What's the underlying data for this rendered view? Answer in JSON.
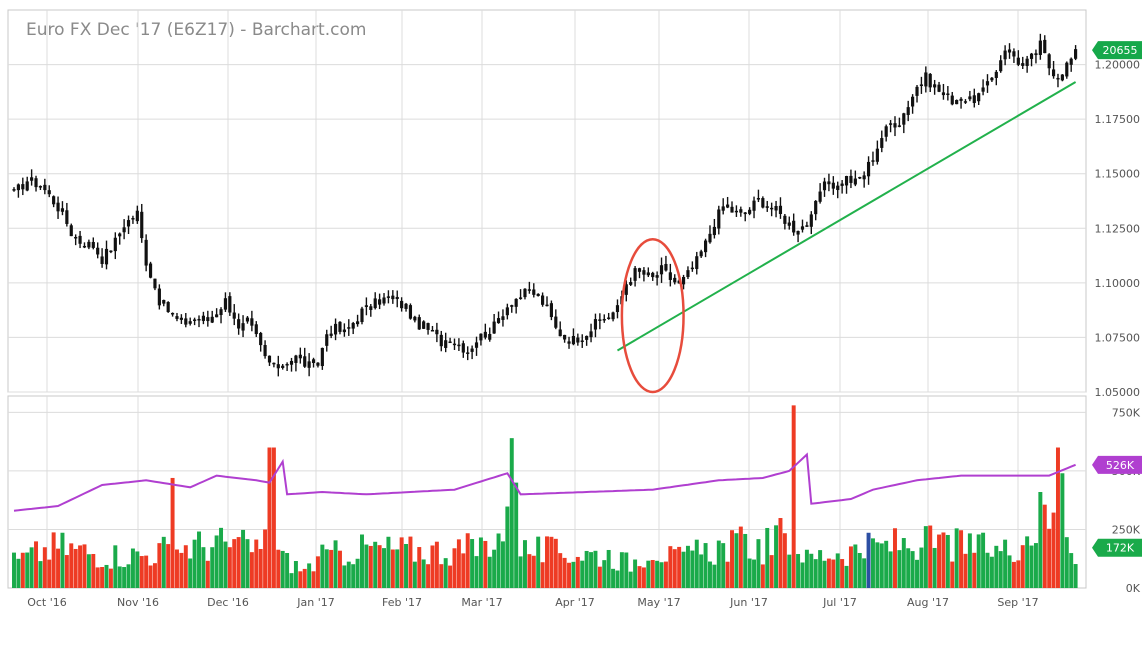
{
  "chart_data": [
    {
      "type": "ohlc",
      "title": "Euro FX Dec '17 (E6Z17) - Barchart.com",
      "y_ticks": [
        "1.05000",
        "1.07500",
        "1.10000",
        "1.12500",
        "1.15000",
        "1.17500",
        "1.20000"
      ],
      "y_tick_values": [
        1.05,
        1.075,
        1.1,
        1.125,
        1.15,
        1.175,
        1.2
      ],
      "ylim": [
        1.05,
        1.225
      ],
      "last_price_label": "20655",
      "last_price": 1.2066,
      "x_tick_labels": [
        "Oct '16",
        "Nov '16",
        "Dec '16",
        "Jan '17",
        "Feb '17",
        "Mar '17",
        "Apr '17",
        "May '17",
        "Jun '17",
        "Jul '17",
        "Aug '17",
        "Sep '17"
      ],
      "price_anchors": [
        [
          0,
          1.141
        ],
        [
          3,
          1.147
        ],
        [
          6,
          1.145
        ],
        [
          8,
          1.14
        ],
        [
          11,
          1.132
        ],
        [
          13,
          1.123
        ],
        [
          15,
          1.119
        ],
        [
          18,
          1.117
        ],
        [
          20,
          1.111
        ],
        [
          23,
          1.119
        ],
        [
          25,
          1.127
        ],
        [
          27,
          1.13
        ],
        [
          28,
          1.132
        ],
        [
          29,
          1.12
        ],
        [
          30,
          1.11
        ],
        [
          33,
          1.092
        ],
        [
          36,
          1.085
        ],
        [
          38,
          1.081
        ],
        [
          40,
          1.083
        ],
        [
          42,
          1.084
        ],
        [
          44,
          1.083
        ],
        [
          46,
          1.087
        ],
        [
          48,
          1.092
        ],
        [
          50,
          1.085
        ],
        [
          51,
          1.078
        ],
        [
          53,
          1.082
        ],
        [
          55,
          1.075
        ],
        [
          57,
          1.066
        ],
        [
          59,
          1.061
        ],
        [
          61,
          1.063
        ],
        [
          63,
          1.065
        ],
        [
          64,
          1.066
        ],
        [
          66,
          1.063
        ],
        [
          68,
          1.061
        ],
        [
          69,
          1.063
        ],
        [
          71,
          1.077
        ],
        [
          73,
          1.079
        ],
        [
          75,
          1.077
        ],
        [
          77,
          1.082
        ],
        [
          79,
          1.087
        ],
        [
          81,
          1.089
        ],
        [
          83,
          1.092
        ],
        [
          85,
          1.093
        ],
        [
          87,
          1.091
        ],
        [
          89,
          1.089
        ],
        [
          91,
          1.082
        ],
        [
          93,
          1.08
        ],
        [
          95,
          1.077
        ],
        [
          97,
          1.073
        ],
        [
          99,
          1.075
        ],
        [
          101,
          1.072
        ],
        [
          103,
          1.069
        ],
        [
          105,
          1.074
        ],
        [
          107,
          1.077
        ],
        [
          109,
          1.08
        ],
        [
          111,
          1.087
        ],
        [
          113,
          1.092
        ],
        [
          115,
          1.094
        ],
        [
          117,
          1.096
        ],
        [
          119,
          1.094
        ],
        [
          121,
          1.088
        ],
        [
          123,
          1.079
        ],
        [
          125,
          1.075
        ],
        [
          127,
          1.074
        ],
        [
          129,
          1.076
        ],
        [
          131,
          1.079
        ],
        [
          133,
          1.083
        ],
        [
          135,
          1.085
        ],
        [
          137,
          1.088
        ],
        [
          139,
          1.1
        ],
        [
          141,
          1.105
        ],
        [
          143,
          1.104
        ],
        [
          145,
          1.102
        ],
        [
          147,
          1.106
        ],
        [
          149,
          1.102
        ],
        [
          151,
          1.099
        ],
        [
          153,
          1.104
        ],
        [
          155,
          1.11
        ],
        [
          157,
          1.118
        ],
        [
          159,
          1.128
        ],
        [
          161,
          1.135
        ],
        [
          163,
          1.133
        ],
        [
          165,
          1.131
        ],
        [
          167,
          1.134
        ],
        [
          169,
          1.138
        ],
        [
          171,
          1.136
        ],
        [
          173,
          1.133
        ],
        [
          175,
          1.129
        ],
        [
          177,
          1.125
        ],
        [
          179,
          1.126
        ],
        [
          181,
          1.129
        ],
        [
          183,
          1.142
        ],
        [
          185,
          1.146
        ],
        [
          187,
          1.144
        ],
        [
          189,
          1.148
        ],
        [
          191,
          1.146
        ],
        [
          193,
          1.15
        ],
        [
          195,
          1.158
        ],
        [
          197,
          1.167
        ],
        [
          199,
          1.173
        ],
        [
          201,
          1.174
        ],
        [
          203,
          1.182
        ],
        [
          205,
          1.19
        ],
        [
          207,
          1.194
        ],
        [
          209,
          1.19
        ],
        [
          211,
          1.186
        ],
        [
          213,
          1.184
        ],
        [
          215,
          1.185
        ],
        [
          217,
          1.183
        ],
        [
          219,
          1.186
        ],
        [
          221,
          1.19
        ],
        [
          223,
          1.198
        ],
        [
          225,
          1.208
        ],
        [
          227,
          1.204
        ],
        [
          229,
          1.199
        ],
        [
          231,
          1.203
        ],
        [
          233,
          1.209
        ],
        [
          235,
          1.199
        ],
        [
          237,
          1.195
        ],
        [
          239,
          1.2
        ],
        [
          241,
          1.205
        ]
      ],
      "markers": [
        {
          "type": "trendline",
          "from": [
            137,
            1.069
          ],
          "to": [
            241,
            1.192
          ],
          "color": "#22b14c"
        },
        {
          "type": "ellipse",
          "center": [
            145,
            1.085
          ],
          "radii": [
            7,
            0.035
          ],
          "color": "#e74c3c"
        }
      ]
    },
    {
      "type": "bar",
      "y_ticks": [
        "0K",
        "250K",
        "500K",
        "750K"
      ],
      "y_tick_values": [
        0,
        250000,
        500000,
        750000
      ],
      "ylim": [
        0,
        820000
      ],
      "up_color": "#1aaa4a",
      "down_color": "#ee3b24",
      "highlight_color": "#2c4fa3",
      "highlight_index": 194,
      "volume_anchors": [
        [
          0,
          120
        ],
        [
          10,
          190
        ],
        [
          20,
          150
        ],
        [
          30,
          150
        ],
        [
          35,
          180
        ],
        [
          40,
          190
        ],
        [
          47,
          200
        ],
        [
          55,
          180
        ],
        [
          60,
          160
        ],
        [
          62,
          120
        ],
        [
          66,
          80
        ],
        [
          70,
          140
        ],
        [
          80,
          180
        ],
        [
          90,
          170
        ],
        [
          100,
          170
        ],
        [
          105,
          180
        ],
        [
          110,
          240
        ],
        [
          113,
          300
        ],
        [
          116,
          170
        ],
        [
          125,
          160
        ],
        [
          135,
          150
        ],
        [
          140,
          110
        ],
        [
          145,
          190
        ],
        [
          150,
          130
        ],
        [
          160,
          180
        ],
        [
          165,
          200
        ],
        [
          170,
          180
        ],
        [
          175,
          240
        ],
        [
          178,
          200
        ],
        [
          180,
          130
        ],
        [
          185,
          160
        ],
        [
          195,
          180
        ],
        [
          200,
          200
        ],
        [
          210,
          200
        ],
        [
          220,
          180
        ],
        [
          225,
          170
        ],
        [
          230,
          240
        ],
        [
          235,
          300
        ],
        [
          239,
          280
        ],
        [
          241,
          170
        ]
      ],
      "volume_spikes": [
        [
          36,
          470
        ],
        [
          57,
          250
        ],
        [
          58,
          600
        ],
        [
          59,
          600
        ],
        [
          113,
          640
        ],
        [
          114,
          450
        ],
        [
          177,
          780
        ],
        [
          233,
          410
        ],
        [
          237,
          600
        ],
        [
          238,
          490
        ]
      ],
      "moving_average": {
        "color": "#b03fd0",
        "anchors": [
          [
            0,
            330
          ],
          [
            10,
            350
          ],
          [
            20,
            440
          ],
          [
            30,
            460
          ],
          [
            40,
            430
          ],
          [
            46,
            480
          ],
          [
            55,
            460
          ],
          [
            58,
            450
          ],
          [
            61,
            540
          ],
          [
            62,
            400
          ],
          [
            70,
            410
          ],
          [
            80,
            400
          ],
          [
            90,
            410
          ],
          [
            100,
            420
          ],
          [
            112,
            490
          ],
          [
            115,
            400
          ],
          [
            130,
            410
          ],
          [
            145,
            420
          ],
          [
            160,
            460
          ],
          [
            170,
            470
          ],
          [
            176,
            500
          ],
          [
            180,
            570
          ],
          [
            181,
            360
          ],
          [
            190,
            380
          ],
          [
            195,
            420
          ],
          [
            205,
            460
          ],
          [
            215,
            480
          ],
          [
            225,
            480
          ],
          [
            235,
            480
          ],
          [
            241,
            526
          ]
        ]
      },
      "last_ma_label": "526K",
      "last_volume_label": "172K"
    }
  ]
}
